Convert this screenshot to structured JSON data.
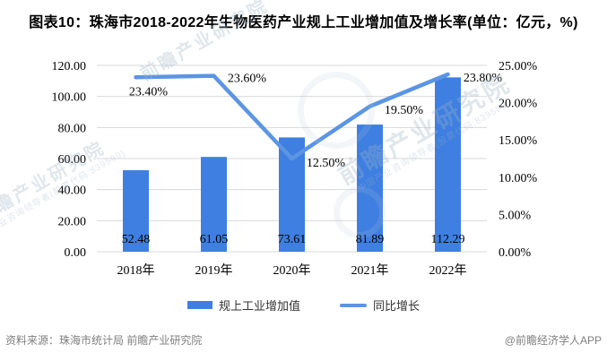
{
  "title": "图表10：珠海市2018-2022年生物医药产业规上工业增加值及增长率(单位：亿元，%)",
  "chart_data": {
    "type": "bar",
    "combo": "bar+line",
    "categories": [
      "2018年",
      "2019年",
      "2020年",
      "2021年",
      "2022年"
    ],
    "series": [
      {
        "name": "规上工业增加值",
        "type": "bar",
        "axis": "left",
        "values": [
          52.48,
          61.05,
          73.61,
          81.89,
          112.29
        ],
        "labels": [
          "52.48",
          "61.05",
          "73.61",
          "81.89",
          "112.29"
        ],
        "color": "#3e7fe1"
      },
      {
        "name": "同比增长",
        "type": "line",
        "axis": "right",
        "values": [
          23.4,
          23.6,
          12.5,
          19.5,
          23.8
        ],
        "labels": [
          "23.40%",
          "23.60%",
          "12.50%",
          "19.50%",
          "23.80%"
        ],
        "color": "#5b95e3"
      }
    ],
    "left_axis": {
      "min": 0,
      "max": 120,
      "step": 20,
      "tick_labels": [
        "0.00",
        "20.00",
        "40.00",
        "60.00",
        "80.00",
        "100.00",
        "120.00"
      ]
    },
    "right_axis": {
      "min": 0,
      "max": 25,
      "step": 5,
      "tick_labels": [
        "0.00%",
        "5.00%",
        "10.00%",
        "15.00%",
        "20.00%",
        "25.00%"
      ]
    },
    "grid": true,
    "legend_position": "bottom",
    "title": "图表10：珠海市2018-2022年生物医药产业规上工业增加值及增长率(单位：亿元，%)",
    "xlabel": "",
    "ylabel_left": "亿元",
    "ylabel_right": "%"
  },
  "watermark": {
    "text": "前瞻产业研究院",
    "subtext": "中国产业咨询领导者(股票代码:839599)"
  },
  "footer": {
    "source": "资料来源：珠海市统计局 前瞻产业研究院",
    "credit": "@前瞻经济学人APP"
  },
  "colors": {
    "bar": "#3e7fe1",
    "line": "#5b95e3",
    "grid": "#d9d9d9",
    "axis_text": "#000000",
    "footer_text": "#7f7f7f",
    "watermark": "#9fb6c6"
  }
}
